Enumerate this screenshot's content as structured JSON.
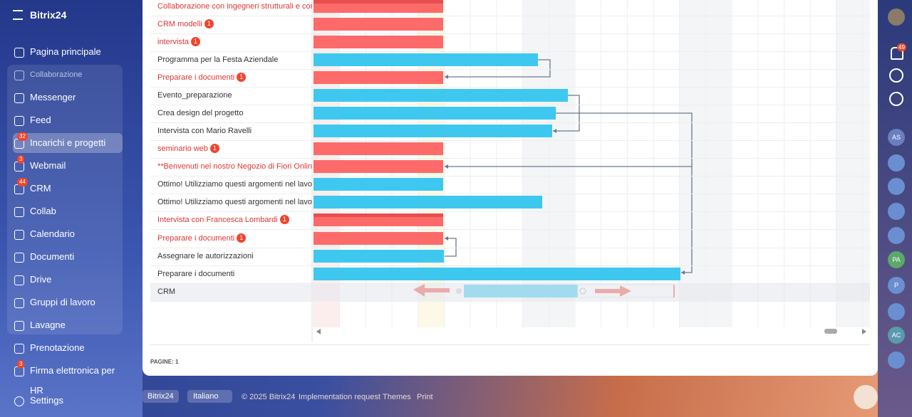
{
  "sidebar": {
    "logo": "Bitrix24",
    "items": [
      {
        "label": "Pagina principale"
      },
      {
        "label": "Collaborazione"
      },
      {
        "label": "Messenger"
      },
      {
        "label": "Feed"
      },
      {
        "label": "Incarichi e progetti",
        "badge": 32
      },
      {
        "label": "Webmail",
        "badge": 3
      },
      {
        "label": "CRM",
        "badge": 44
      },
      {
        "label": "Collab"
      },
      {
        "label": "Calendario"
      },
      {
        "label": "Documenti"
      },
      {
        "label": "Drive"
      },
      {
        "label": "Gruppi di lavoro"
      },
      {
        "label": "Lavagne"
      },
      {
        "label": "Prenotazione"
      },
      {
        "label": "Firma elettronica per HR",
        "badge": 3
      }
    ],
    "settings": "Settings"
  },
  "tasks": {
    "rows": [
      {
        "name": "Collaborazione con ingegneri strutturali e consulenti"
      },
      {
        "name": "CRM modelli",
        "badge": 1
      },
      {
        "name": "intervista",
        "badge": 1
      },
      {
        "name": "Programma per la Festa Aziendale"
      },
      {
        "name": "Preparare i documenti",
        "badge": 1
      },
      {
        "name": "Evento_preparazione"
      },
      {
        "name": "Crea design del progetto"
      },
      {
        "name": "Intervista con Mario Ravelli"
      },
      {
        "name": "seminario web",
        "badge": 1
      },
      {
        "name": "**Benvenuti nel nostro Negozio di Fiori Online: La"
      },
      {
        "name": "Ottimo! Utilizziamo questi argomenti nel lavoro!"
      },
      {
        "name": "Ottimo! Utilizziamo questi argomenti nel lavoro!"
      },
      {
        "name": "Intervista con Francesca Lombardi",
        "badge": 1
      },
      {
        "name": "Preparare i documenti",
        "badge": 1
      },
      {
        "name": "Assegnare le autorizzazioni"
      },
      {
        "name": "Preparare i documenti"
      },
      {
        "name": "CRM"
      }
    ],
    "pages": "PAGINE: 1"
  },
  "footer": {
    "brand": "Bitrix24",
    "language": "Italiano",
    "copyright": "© 2025 Bitrix24",
    "links": [
      "Implementation request",
      "Themes",
      "Print"
    ]
  },
  "right_bar": {
    "notifications": 49,
    "avatars": [
      "AS",
      "PA",
      "P",
      "AC"
    ]
  }
}
